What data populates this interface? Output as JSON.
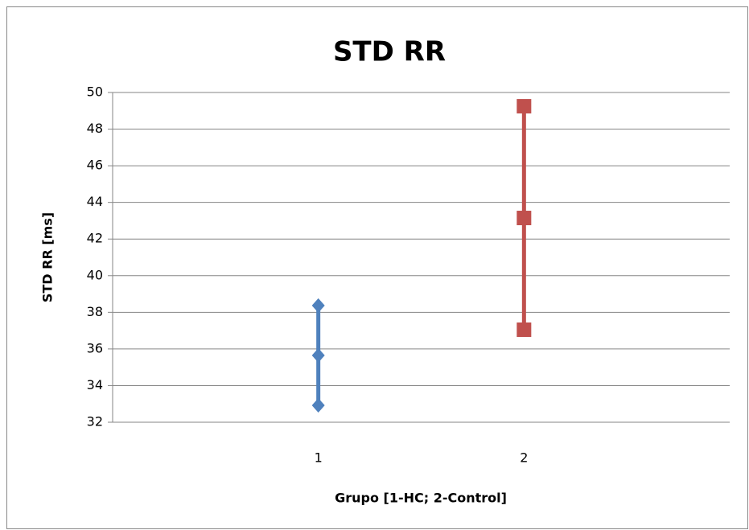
{
  "chart_data": {
    "type": "errorbar",
    "title": "STD RR",
    "xlabel": "Grupo [1-HC; 2-Control]",
    "ylabel": "STD RR [ms]",
    "xlim": [
      0,
      3
    ],
    "xticks": [
      1,
      2
    ],
    "ylim": [
      32,
      50
    ],
    "yticks": [
      32,
      34,
      36,
      38,
      40,
      42,
      44,
      46,
      48,
      50
    ],
    "grid": true,
    "series": [
      {
        "x": 1,
        "color": "#4f81bd",
        "marker": "diamond",
        "values": [
          32.92,
          35.65,
          38.37
        ]
      },
      {
        "x": 2,
        "color": "#c0504d",
        "marker": "square",
        "values": [
          37.05,
          43.15,
          49.25
        ]
      }
    ]
  }
}
